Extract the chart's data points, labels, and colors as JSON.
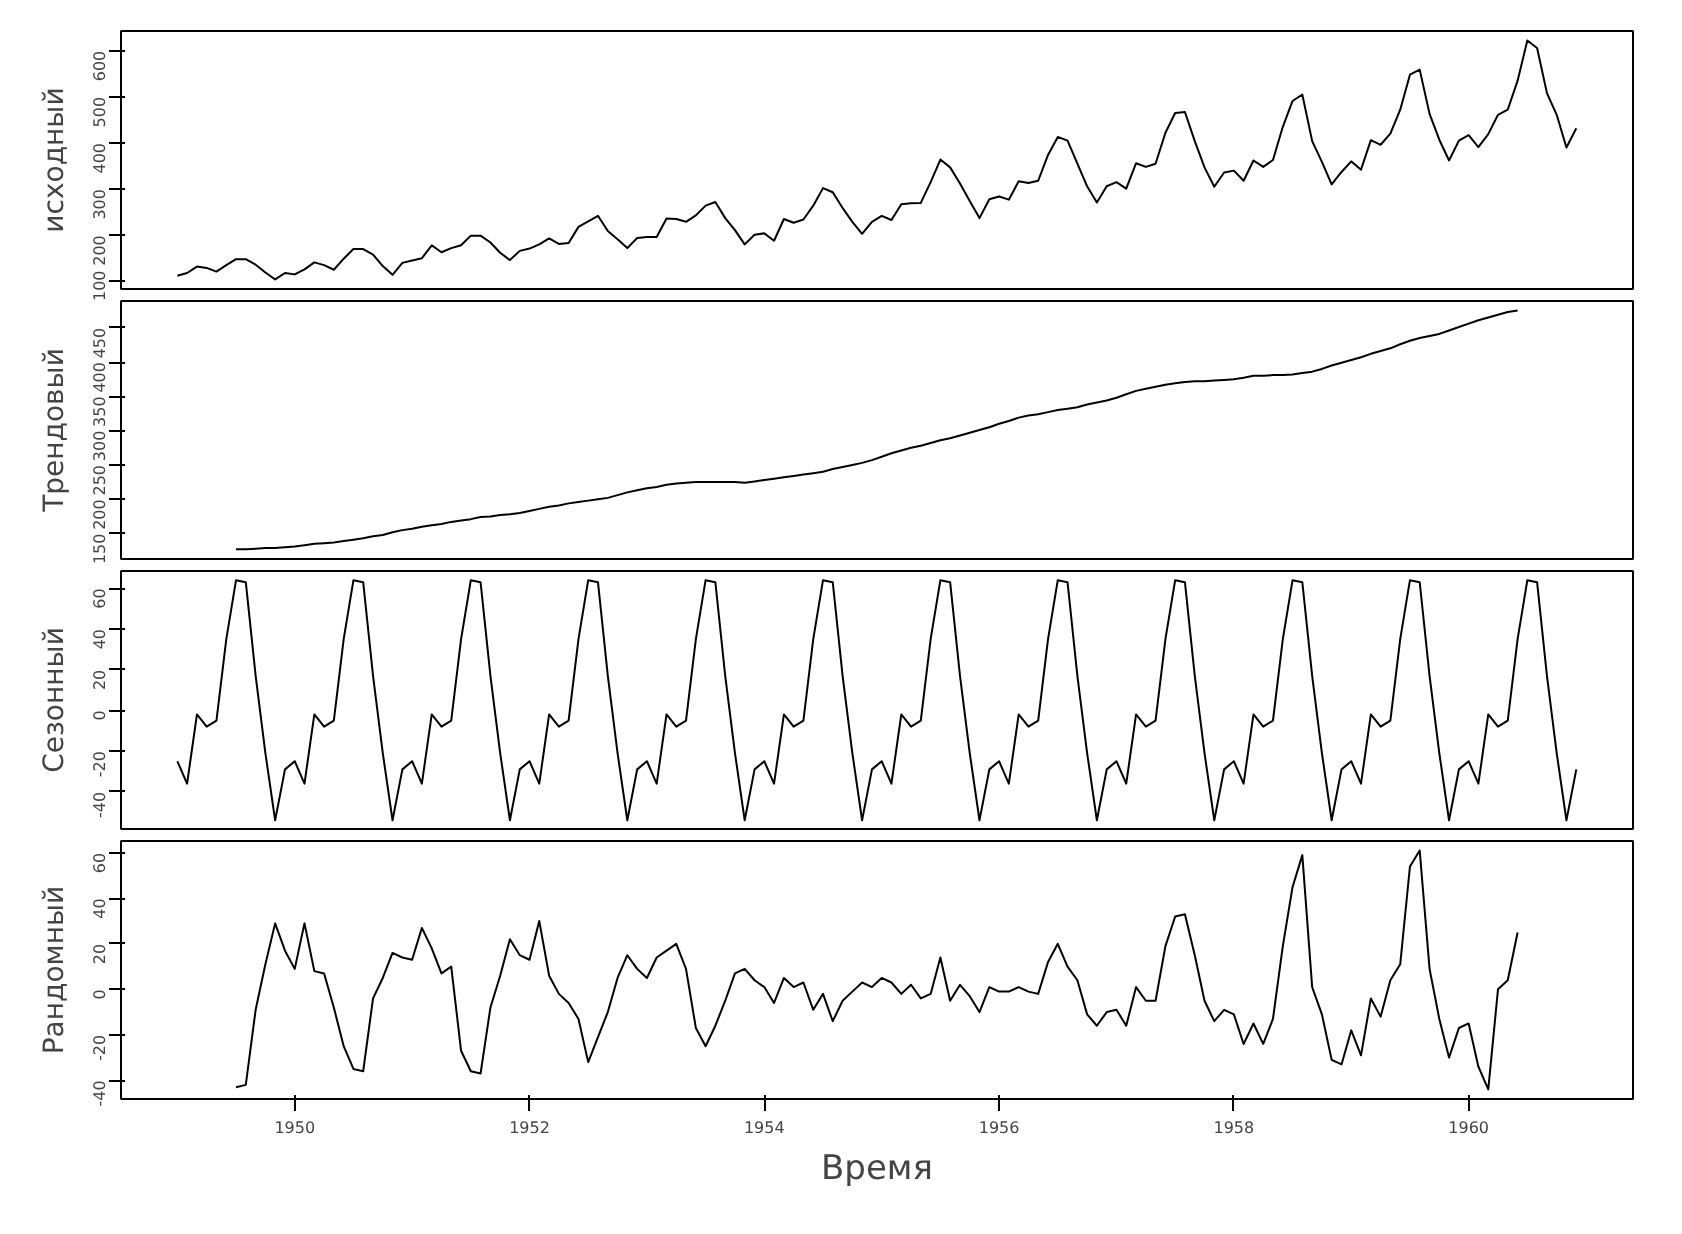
{
  "chart_data": [
    {
      "type": "line",
      "ylabel": "исходный",
      "color": "#000000",
      "tick_labels": "y",
      "xlim": [
        1948.52,
        1961.4
      ],
      "ylim": [
        83.3,
        642.7
      ],
      "yticks": [
        100,
        200,
        300,
        400,
        500,
        600
      ],
      "x": [
        1949.0,
        1949.083,
        1949.167,
        1949.25,
        1949.333,
        1949.417,
        1949.5,
        1949.583,
        1949.667,
        1949.75,
        1949.833,
        1949.917,
        1950.0,
        1950.083,
        1950.167,
        1950.25,
        1950.333,
        1950.417,
        1950.5,
        1950.583,
        1950.667,
        1950.75,
        1950.833,
        1950.917,
        1951.0,
        1951.083,
        1951.167,
        1951.25,
        1951.333,
        1951.417,
        1951.5,
        1951.583,
        1951.667,
        1951.75,
        1951.833,
        1951.917,
        1952.0,
        1952.083,
        1952.167,
        1952.25,
        1952.333,
        1952.417,
        1952.5,
        1952.583,
        1952.667,
        1952.75,
        1952.833,
        1952.917,
        1953.0,
        1953.083,
        1953.167,
        1953.25,
        1953.333,
        1953.417,
        1953.5,
        1953.583,
        1953.667,
        1953.75,
        1953.833,
        1953.917,
        1954.0,
        1954.083,
        1954.167,
        1954.25,
        1954.333,
        1954.417,
        1954.5,
        1954.583,
        1954.667,
        1954.75,
        1954.833,
        1954.917,
        1955.0,
        1955.083,
        1955.167,
        1955.25,
        1955.333,
        1955.417,
        1955.5,
        1955.583,
        1955.667,
        1955.75,
        1955.833,
        1955.917,
        1956.0,
        1956.083,
        1956.167,
        1956.25,
        1956.333,
        1956.417,
        1956.5,
        1956.583,
        1956.667,
        1956.75,
        1956.833,
        1956.917,
        1957.0,
        1957.083,
        1957.167,
        1957.25,
        1957.333,
        1957.417,
        1957.5,
        1957.583,
        1957.667,
        1957.75,
        1957.833,
        1957.917,
        1958.0,
        1958.083,
        1958.167,
        1958.25,
        1958.333,
        1958.417,
        1958.5,
        1958.583,
        1958.667,
        1958.75,
        1958.833,
        1958.917,
        1959.0,
        1959.083,
        1959.167,
        1959.25,
        1959.333,
        1959.417,
        1959.5,
        1959.583,
        1959.667,
        1959.75,
        1959.833,
        1959.917,
        1960.0,
        1960.083,
        1960.167,
        1960.25,
        1960.333,
        1960.417,
        1960.5,
        1960.583,
        1960.667,
        1960.75,
        1960.833,
        1960.917
      ],
      "values": [
        112,
        118,
        132,
        129,
        121,
        135,
        148,
        148,
        136,
        119,
        104,
        118,
        115,
        126,
        141,
        135,
        125,
        149,
        170,
        170,
        158,
        133,
        114,
        140,
        145,
        150,
        178,
        163,
        172,
        178,
        199,
        199,
        184,
        162,
        146,
        166,
        171,
        180,
        193,
        181,
        183,
        218,
        230,
        242,
        209,
        191,
        172,
        194,
        196,
        196,
        236,
        235,
        229,
        243,
        264,
        272,
        237,
        211,
        180,
        201,
        204,
        188,
        235,
        227,
        234,
        264,
        302,
        293,
        259,
        229,
        203,
        229,
        242,
        233,
        267,
        269,
        270,
        315,
        364,
        347,
        312,
        274,
        237,
        278,
        284,
        277,
        317,
        313,
        318,
        374,
        413,
        405,
        355,
        306,
        271,
        306,
        315,
        301,
        356,
        348,
        355,
        422,
        465,
        467,
        404,
        347,
        305,
        336,
        340,
        318,
        362,
        348,
        363,
        435,
        491,
        505,
        404,
        359,
        310,
        337,
        360,
        342,
        406,
        396,
        420,
        472,
        548,
        559,
        463,
        407,
        362,
        405,
        417,
        391,
        419,
        461,
        472,
        535,
        622,
        606,
        508,
        461,
        390,
        432
      ]
    },
    {
      "type": "line",
      "ylabel": "Трендовый",
      "color": "#000000",
      "tick_labels": "y",
      "xlim": [
        1948.52,
        1961.4
      ],
      "ylim": [
        112.9,
        489.0
      ],
      "yticks": [
        150,
        200,
        250,
        300,
        350,
        400,
        450
      ],
      "x": [
        1949.5,
        1949.583,
        1949.667,
        1949.75,
        1949.833,
        1949.917,
        1950.0,
        1950.083,
        1950.167,
        1950.25,
        1950.333,
        1950.417,
        1950.5,
        1950.583,
        1950.667,
        1950.75,
        1950.833,
        1950.917,
        1951.0,
        1951.083,
        1951.167,
        1951.25,
        1951.333,
        1951.417,
        1951.5,
        1951.583,
        1951.667,
        1951.75,
        1951.833,
        1951.917,
        1952.0,
        1952.083,
        1952.167,
        1952.25,
        1952.333,
        1952.417,
        1952.5,
        1952.583,
        1952.667,
        1952.75,
        1952.833,
        1952.917,
        1953.0,
        1953.083,
        1953.167,
        1953.25,
        1953.333,
        1953.417,
        1953.5,
        1953.583,
        1953.667,
        1953.75,
        1953.833,
        1953.917,
        1954.0,
        1954.083,
        1954.167,
        1954.25,
        1954.333,
        1954.417,
        1954.5,
        1954.583,
        1954.667,
        1954.75,
        1954.833,
        1954.917,
        1955.0,
        1955.083,
        1955.167,
        1955.25,
        1955.333,
        1955.417,
        1955.5,
        1955.583,
        1955.667,
        1955.75,
        1955.833,
        1955.917,
        1956.0,
        1956.083,
        1956.167,
        1956.25,
        1956.333,
        1956.417,
        1956.5,
        1956.583,
        1956.667,
        1956.75,
        1956.833,
        1956.917,
        1957.0,
        1957.083,
        1957.167,
        1957.25,
        1957.333,
        1957.417,
        1957.5,
        1957.583,
        1957.667,
        1957.75,
        1957.833,
        1957.917,
        1958.0,
        1958.083,
        1958.167,
        1958.25,
        1958.333,
        1958.417,
        1958.5,
        1958.583,
        1958.667,
        1958.75,
        1958.833,
        1958.917,
        1959.0,
        1959.083,
        1959.167,
        1959.25,
        1959.333,
        1959.417,
        1959.5,
        1959.583,
        1959.667,
        1959.75,
        1959.833,
        1959.917,
        1960.0,
        1960.083,
        1960.167,
        1960.25,
        1960.333,
        1960.417
      ],
      "values": [
        127,
        127,
        128,
        129,
        129,
        130,
        131,
        133,
        135,
        136,
        137,
        139,
        141,
        143,
        146,
        148,
        152,
        155,
        157,
        160,
        162,
        164,
        167,
        169,
        171,
        174,
        175,
        177,
        178,
        180,
        183,
        186,
        189,
        191,
        194,
        196,
        198,
        200,
        202,
        206,
        210,
        213,
        216,
        218,
        221,
        223,
        224,
        225,
        225,
        225,
        225,
        225,
        224,
        226,
        228,
        230,
        232,
        234,
        236,
        238,
        240,
        244,
        247,
        250,
        253,
        257,
        262,
        267,
        271,
        275,
        278,
        282,
        286,
        289,
        293,
        297,
        301,
        305,
        310,
        314,
        319,
        322,
        324,
        327,
        330,
        332,
        334,
        338,
        341,
        344,
        348,
        353,
        358,
        361,
        364,
        367,
        369,
        371,
        372,
        372,
        373,
        374,
        375,
        377,
        380,
        380,
        381,
        381,
        382,
        384,
        386,
        390,
        395,
        399,
        403,
        407,
        412,
        416,
        420,
        426,
        431,
        435,
        438,
        441,
        446,
        451,
        456,
        461,
        465,
        469,
        473,
        475
      ]
    },
    {
      "type": "line",
      "ylabel": "Сезонный",
      "color": "#000000",
      "tick_labels": "y",
      "xlim": [
        1948.52,
        1961.4
      ],
      "ylim": [
        -58.3,
        68.5
      ],
      "yticks": [
        -40,
        -20,
        0,
        20,
        40,
        60
      ],
      "x": [
        1949.0,
        1949.083,
        1949.167,
        1949.25,
        1949.333,
        1949.417,
        1949.5,
        1949.583,
        1949.667,
        1949.75,
        1949.833,
        1949.917,
        1950.0,
        1950.083,
        1950.167,
        1950.25,
        1950.333,
        1950.417,
        1950.5,
        1950.583,
        1950.667,
        1950.75,
        1950.833,
        1950.917,
        1951.0,
        1951.083,
        1951.167,
        1951.25,
        1951.333,
        1951.417,
        1951.5,
        1951.583,
        1951.667,
        1951.75,
        1951.833,
        1951.917,
        1952.0,
        1952.083,
        1952.167,
        1952.25,
        1952.333,
        1952.417,
        1952.5,
        1952.583,
        1952.667,
        1952.75,
        1952.833,
        1952.917,
        1953.0,
        1953.083,
        1953.167,
        1953.25,
        1953.333,
        1953.417,
        1953.5,
        1953.583,
        1953.667,
        1953.75,
        1953.833,
        1953.917,
        1954.0,
        1954.083,
        1954.167,
        1954.25,
        1954.333,
        1954.417,
        1954.5,
        1954.583,
        1954.667,
        1954.75,
        1954.833,
        1954.917,
        1955.0,
        1955.083,
        1955.167,
        1955.25,
        1955.333,
        1955.417,
        1955.5,
        1955.583,
        1955.667,
        1955.75,
        1955.833,
        1955.917,
        1956.0,
        1956.083,
        1956.167,
        1956.25,
        1956.333,
        1956.417,
        1956.5,
        1956.583,
        1956.667,
        1956.75,
        1956.833,
        1956.917,
        1957.0,
        1957.083,
        1957.167,
        1957.25,
        1957.333,
        1957.417,
        1957.5,
        1957.583,
        1957.667,
        1957.75,
        1957.833,
        1957.917,
        1958.0,
        1958.083,
        1958.167,
        1958.25,
        1958.333,
        1958.417,
        1958.5,
        1958.583,
        1958.667,
        1958.75,
        1958.833,
        1958.917,
        1959.0,
        1959.083,
        1959.167,
        1959.25,
        1959.333,
        1959.417,
        1959.5,
        1959.583,
        1959.667,
        1959.75,
        1959.833,
        1959.917,
        1960.0,
        1960.083,
        1960.167,
        1960.25,
        1960.333,
        1960.417,
        1960.5,
        1960.583,
        1960.667,
        1960.75,
        1960.833,
        1960.917
      ],
      "values": [
        -25,
        -36,
        -2,
        -8,
        -5,
        35,
        64,
        63,
        17,
        -21,
        -54,
        -29,
        -25,
        -36,
        -2,
        -8,
        -5,
        35,
        64,
        63,
        17,
        -21,
        -54,
        -29,
        -25,
        -36,
        -2,
        -8,
        -5,
        35,
        64,
        63,
        17,
        -21,
        -54,
        -29,
        -25,
        -36,
        -2,
        -8,
        -5,
        35,
        64,
        63,
        17,
        -21,
        -54,
        -29,
        -25,
        -36,
        -2,
        -8,
        -5,
        35,
        64,
        63,
        17,
        -21,
        -54,
        -29,
        -25,
        -36,
        -2,
        -8,
        -5,
        35,
        64,
        63,
        17,
        -21,
        -54,
        -29,
        -25,
        -36,
        -2,
        -8,
        -5,
        35,
        64,
        63,
        17,
        -21,
        -54,
        -29,
        -25,
        -36,
        -2,
        -8,
        -5,
        35,
        64,
        63,
        17,
        -21,
        -54,
        -29,
        -25,
        -36,
        -2,
        -8,
        -5,
        35,
        64,
        63,
        17,
        -21,
        -54,
        -29,
        -25,
        -36,
        -2,
        -8,
        -5,
        35,
        64,
        63,
        17,
        -21,
        -54,
        -29,
        -25,
        -36,
        -2,
        -8,
        -5,
        35,
        64,
        63,
        17,
        -21,
        -54,
        -29,
        -25,
        -36,
        -2,
        -8,
        -5,
        35,
        64,
        63,
        17,
        -21,
        -54,
        -29
      ]
    },
    {
      "type": "line",
      "ylabel": "Рандомный",
      "xlabel": "Время",
      "color": "#000000",
      "xlim": [
        1948.52,
        1961.4
      ],
      "xticks": [
        1950,
        1952,
        1954,
        1956,
        1958,
        1960
      ],
      "ylim": [
        -48.2,
        65.2
      ],
      "yticks": [
        -40,
        -20,
        0,
        20,
        40,
        60
      ],
      "x": [
        1949.5,
        1949.583,
        1949.667,
        1949.75,
        1949.833,
        1949.917,
        1950.0,
        1950.083,
        1950.167,
        1950.25,
        1950.333,
        1950.417,
        1950.5,
        1950.583,
        1950.667,
        1950.75,
        1950.833,
        1950.917,
        1951.0,
        1951.083,
        1951.167,
        1951.25,
        1951.333,
        1951.417,
        1951.5,
        1951.583,
        1951.667,
        1951.75,
        1951.833,
        1951.917,
        1952.0,
        1952.083,
        1952.167,
        1952.25,
        1952.333,
        1952.417,
        1952.5,
        1952.583,
        1952.667,
        1952.75,
        1952.833,
        1952.917,
        1953.0,
        1953.083,
        1953.167,
        1953.25,
        1953.333,
        1953.417,
        1953.5,
        1953.583,
        1953.667,
        1953.75,
        1953.833,
        1953.917,
        1954.0,
        1954.083,
        1954.167,
        1954.25,
        1954.333,
        1954.417,
        1954.5,
        1954.583,
        1954.667,
        1954.75,
        1954.833,
        1954.917,
        1955.0,
        1955.083,
        1955.167,
        1955.25,
        1955.333,
        1955.417,
        1955.5,
        1955.583,
        1955.667,
        1955.75,
        1955.833,
        1955.917,
        1956.0,
        1956.083,
        1956.167,
        1956.25,
        1956.333,
        1956.417,
        1956.5,
        1956.583,
        1956.667,
        1956.75,
        1956.833,
        1956.917,
        1957.0,
        1957.083,
        1957.167,
        1957.25,
        1957.333,
        1957.417,
        1957.5,
        1957.583,
        1957.667,
        1957.75,
        1957.833,
        1957.917,
        1958.0,
        1958.083,
        1958.167,
        1958.25,
        1958.333,
        1958.417,
        1958.5,
        1958.583,
        1958.667,
        1958.75,
        1958.833,
        1958.917,
        1959.0,
        1959.083,
        1959.167,
        1959.25,
        1959.333,
        1959.417,
        1959.5,
        1959.583,
        1959.667,
        1959.75,
        1959.833,
        1959.917,
        1960.0,
        1960.083,
        1960.167,
        1960.25,
        1960.333,
        1960.417
      ],
      "values": [
        -43,
        -42,
        -9,
        11,
        29,
        17,
        9,
        29,
        8,
        7,
        -8,
        -25,
        -35,
        -36,
        -4,
        5,
        16,
        14,
        13,
        27,
        18,
        7,
        10,
        -27,
        -36,
        -37,
        -8,
        6,
        22,
        15,
        13,
        30,
        6,
        -2,
        -6,
        -13,
        -32,
        -21,
        -10,
        5,
        15,
        9,
        5,
        14,
        17,
        20,
        9,
        -17,
        -25,
        -16,
        -5,
        7,
        9,
        4,
        1,
        -6,
        5,
        1,
        3,
        -9,
        -2,
        -14,
        -5,
        -1,
        3,
        1,
        5,
        3,
        -2,
        2,
        -4,
        -2,
        14,
        -5,
        2,
        -3,
        -10,
        1,
        -1,
        -1,
        1,
        -1,
        -2,
        12,
        20,
        10,
        4,
        -11,
        -16,
        -10,
        -9,
        -16,
        1,
        -5,
        -5,
        19,
        32,
        33,
        15,
        -5,
        -14,
        -9,
        -11,
        -24,
        -15,
        -24,
        -13,
        19,
        45,
        59,
        1,
        -11,
        -31,
        -33,
        -18,
        -29,
        -4,
        -12,
        4,
        11,
        54,
        61,
        9,
        -13,
        -30,
        -17,
        -15,
        -34,
        -44,
        0,
        4,
        25
      ]
    }
  ]
}
